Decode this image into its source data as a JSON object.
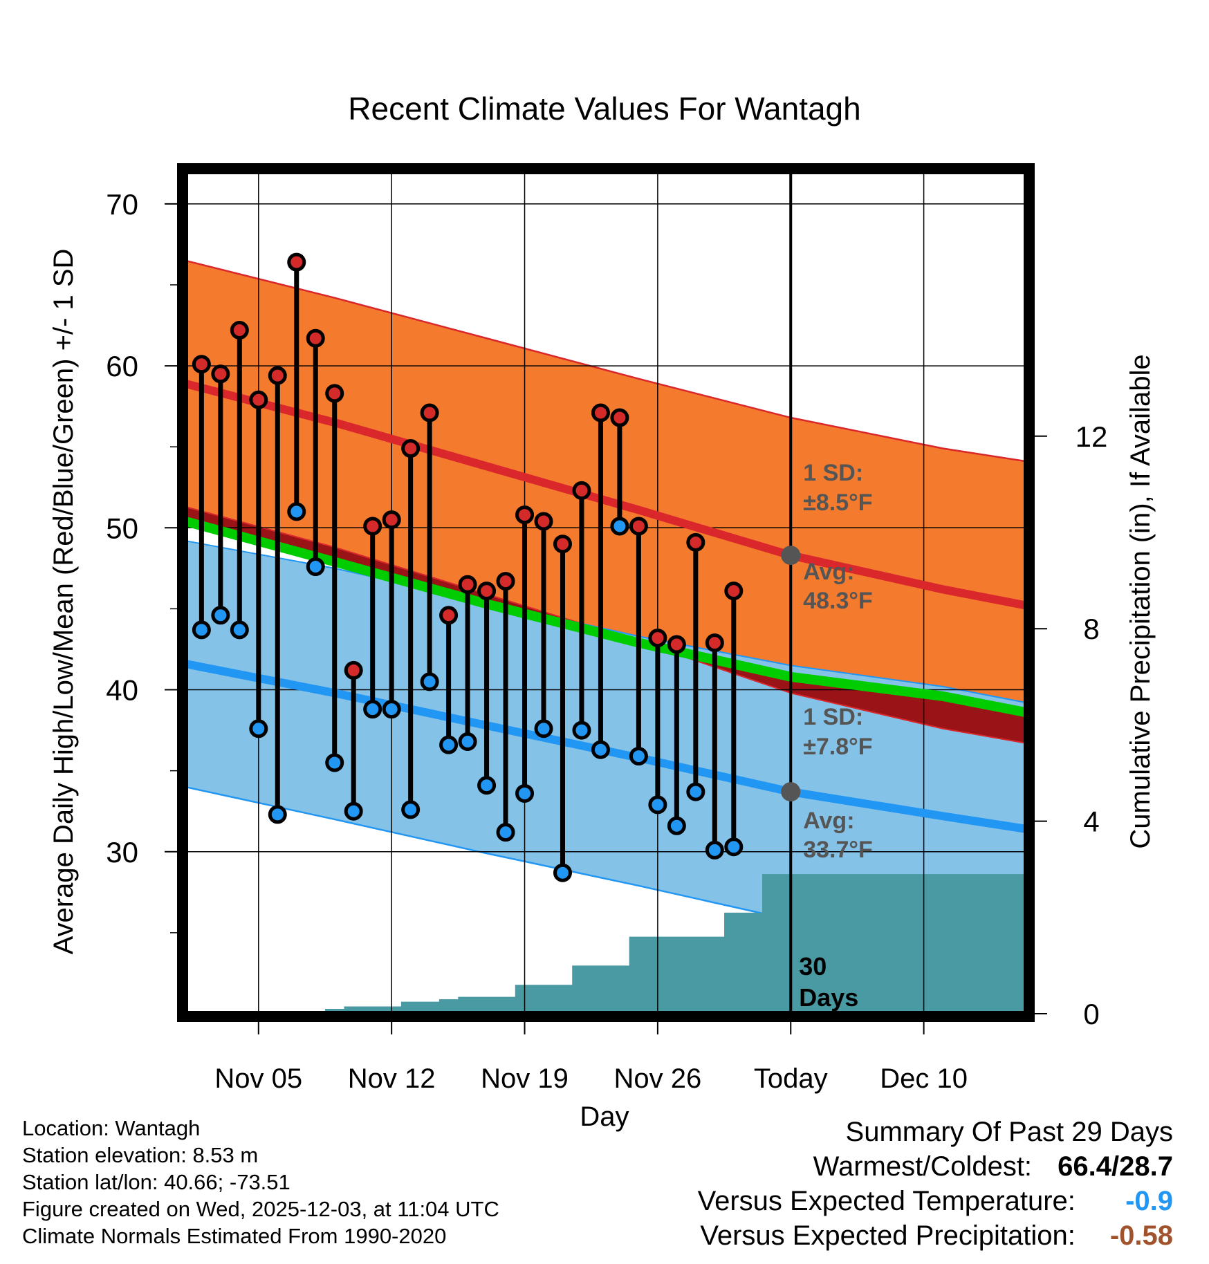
{
  "chart_data": {
    "type": "line",
    "title": "Recent Climate Values For Wantagh",
    "xlabel": "Day",
    "ylabel": "Average Daily High/Low/Mean (Red/Blue/Green) +/- 1 SD",
    "y2label": "Cumulative Precipitation (in), If Available",
    "ylim": [
      20,
      72
    ],
    "y2lim": [
      0,
      17.5
    ],
    "xlim": [
      0.15,
      44.4
    ],
    "yticks": [
      30,
      40,
      50,
      60,
      70
    ],
    "y2ticks": [
      0,
      4,
      8,
      12
    ],
    "xticks": [
      {
        "day": 4,
        "label": "Nov 05"
      },
      {
        "day": 11,
        "label": "Nov 12"
      },
      {
        "day": 18,
        "label": "Nov 19"
      },
      {
        "day": 25,
        "label": "Nov 26"
      },
      {
        "day": 32,
        "label": "Today"
      },
      {
        "day": 39,
        "label": "Dec 10"
      }
    ],
    "today_day": 32,
    "days_label": [
      "30",
      "Days"
    ],
    "normals": {
      "days": [
        0.15,
        8,
        16,
        24,
        32,
        40,
        44.4
      ],
      "high_avg": [
        58.9,
        56.5,
        53.8,
        51.1,
        48.3,
        46.2,
        45.2
      ],
      "high_upper": [
        66.5,
        64.2,
        61.7,
        59.2,
        56.8,
        54.9,
        54.1
      ],
      "high_lower": [
        51.3,
        48.8,
        45.9,
        43.0,
        39.8,
        37.6,
        36.7
      ],
      "mean_avg": [
        50.4,
        47.9,
        45.3,
        42.9,
        40.8,
        39.6,
        38.6
      ],
      "low_avg": [
        41.6,
        39.8,
        37.8,
        35.8,
        33.7,
        32.2,
        31.4
      ],
      "low_upper": [
        49.2,
        47.5,
        45.4,
        43.3,
        41.5,
        40.2,
        39.2
      ],
      "low_lower": [
        34.0,
        32.0,
        29.9,
        27.9,
        25.8,
        24.3,
        23.6
      ]
    },
    "series": [
      {
        "name": "High",
        "days": [
          1,
          2,
          3,
          4,
          5,
          6,
          7,
          8,
          9,
          10,
          11,
          12,
          13,
          14,
          15,
          16,
          17,
          18,
          19,
          20,
          21,
          22,
          23,
          24,
          25,
          26,
          27,
          28,
          29,
          30
        ],
        "values": [
          60.1,
          59.5,
          62.2,
          57.9,
          59.4,
          66.4,
          61.7,
          58.3,
          41.2,
          50.1,
          50.5,
          54.9,
          57.1,
          44.6,
          46.5,
          46.1,
          46.7,
          50.8,
          50.4,
          49.0,
          52.3,
          57.1,
          56.8,
          50.1,
          43.2,
          42.8,
          49.1,
          42.9,
          46.1,
          null
        ]
      },
      {
        "name": "Low",
        "days": [
          1,
          2,
          3,
          4,
          5,
          6,
          7,
          8,
          9,
          10,
          11,
          12,
          13,
          14,
          15,
          16,
          17,
          18,
          19,
          20,
          21,
          22,
          23,
          24,
          25,
          26,
          27,
          28,
          29,
          30
        ],
        "values": [
          43.7,
          44.6,
          43.7,
          37.6,
          32.3,
          51.0,
          47.6,
          35.5,
          32.5,
          38.8,
          38.8,
          32.6,
          40.5,
          36.6,
          36.8,
          34.1,
          31.2,
          33.6,
          37.6,
          28.7,
          37.5,
          36.3,
          50.1,
          35.9,
          32.9,
          31.6,
          33.7,
          30.1,
          30.3,
          null
        ]
      },
      {
        "name": "Cumulative Precipitation",
        "days": [
          1,
          2,
          3,
          4,
          5,
          6,
          7,
          8,
          9,
          10,
          11,
          12,
          13,
          14,
          15,
          16,
          17,
          18,
          19,
          20,
          21,
          22,
          23,
          24,
          25,
          26,
          27,
          28,
          29,
          30,
          31,
          32,
          33,
          34,
          35,
          36,
          37,
          38,
          39,
          40,
          41,
          42,
          43,
          44
        ],
        "values": [
          0,
          0,
          0,
          0,
          0,
          0,
          0,
          0.1,
          0.15,
          0.15,
          0.15,
          0.25,
          0.25,
          0.3,
          0.35,
          0.35,
          0.35,
          0.6,
          0.6,
          0.6,
          1.0,
          1.0,
          1.0,
          1.6,
          1.6,
          1.6,
          1.6,
          1.6,
          2.1,
          2.1,
          2.9,
          2.9,
          2.9,
          2.9,
          2.9,
          2.9,
          2.9,
          2.9,
          2.9,
          2.9,
          2.9,
          2.9,
          2.9,
          2.9
        ]
      }
    ],
    "annotations": [
      {
        "line1": "1 SD:",
        "line2": "±8.5°F"
      },
      {
        "line1": "Avg:",
        "line2": "48.3°F"
      },
      {
        "line1": "1 SD:",
        "line2": "±7.8°F"
      },
      {
        "line1": "Avg:",
        "line2": "33.7°F"
      }
    ],
    "colors": {
      "high_band": "#f47b2e",
      "high_line": "#d9272b",
      "low_band": "#85c2e8",
      "low_line": "#2196f3",
      "mean_line": "#00cc00",
      "dark_red": "#9a1417",
      "precip": "#4a9aa4",
      "high_dot": "#d42a2a",
      "low_dot": "#2196f3",
      "marker": "#555555",
      "annotation_text": "#555555"
    }
  },
  "footer": {
    "location": "Location: Wantagh",
    "elevation": "Station elevation: 8.53 m",
    "latlon": "Station lat/lon: 40.66; -73.51",
    "created": "Figure created on Wed, 2025-12-03, at 11:04 UTC",
    "normals": "Climate Normals Estimated From 1990-2020"
  },
  "summary": {
    "title": "Summary Of Past 29 Days",
    "warm_cold_label": "Warmest/Coldest:",
    "warm_cold_value": "66.4/28.7",
    "temp_label": "Versus Expected Temperature:",
    "temp_value": "-0.9",
    "precip_label": "Versus Expected Precipitation:",
    "precip_value": "-0.58",
    "temp_color": "#2196f3",
    "precip_color": "#a0522d"
  }
}
